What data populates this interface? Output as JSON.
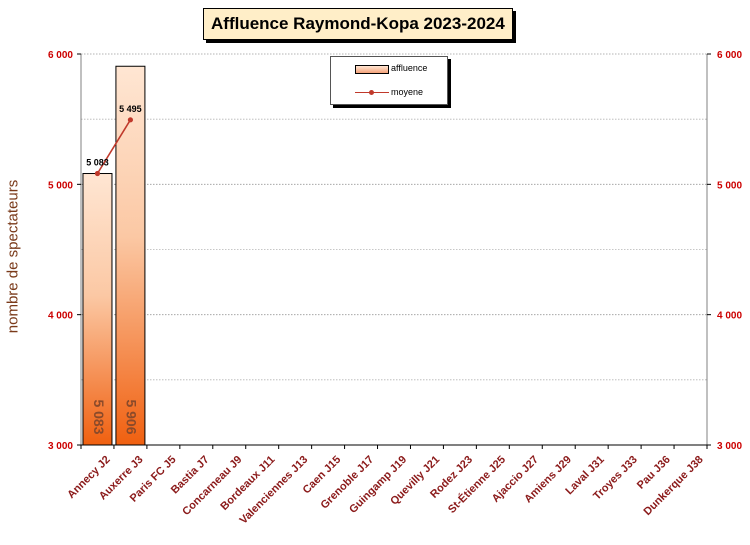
{
  "chart_data": {
    "type": "bar",
    "title": "Affluence Raymond-Kopa 2023-2024",
    "xlabel": "",
    "ylabel": "nombre de spectateurs",
    "ylim": [
      3000,
      6000
    ],
    "y_ticks": [
      3000,
      4000,
      5000,
      6000
    ],
    "y_tick_labels": [
      "3 000",
      "4 000",
      "5 000",
      "6 000"
    ],
    "minor_gridlines": [
      3500,
      4500,
      5500
    ],
    "categories": [
      "Annecy J2",
      "Auxerre J3",
      "Paris FC J5",
      "Bastia J7",
      "Concarneau J9",
      "Bordeaux J11",
      "Valenciennes J13",
      "Caen J15",
      "Grenoble J17",
      "Guingamp J19",
      "Quevilly J21",
      "Rodez J23",
      "St-Étienne J25",
      "Ajaccio J27",
      "Amiens J29",
      "Laval J31",
      "Troyes J33",
      "Pau J36",
      "Dunkerque J38"
    ],
    "series": [
      {
        "name": "affluence",
        "type": "bar",
        "values": [
          5083,
          5906,
          null,
          null,
          null,
          null,
          null,
          null,
          null,
          null,
          null,
          null,
          null,
          null,
          null,
          null,
          null,
          null,
          null
        ],
        "labels": [
          "5 083",
          "5 906"
        ],
        "color": "#f06010"
      },
      {
        "name": "moyene",
        "type": "line",
        "values": [
          5083,
          5495,
          null,
          null,
          null,
          null,
          null,
          null,
          null,
          null,
          null,
          null,
          null,
          null,
          null,
          null,
          null,
          null,
          null
        ],
        "labels": [
          "5 083",
          "5 495"
        ],
        "color": "#c0392b"
      }
    ],
    "grid": true,
    "legend_position": "top-center",
    "secondary_y_axis": true
  },
  "colors": {
    "axis_label": "#7a3a1a",
    "tick_label": "#cc0000",
    "category_label": "#8b1a1a",
    "title_background": "#ffeec8",
    "bar_top": "#ffe6d3",
    "bar_bottom": "#f06010",
    "line": "#c0392b"
  }
}
